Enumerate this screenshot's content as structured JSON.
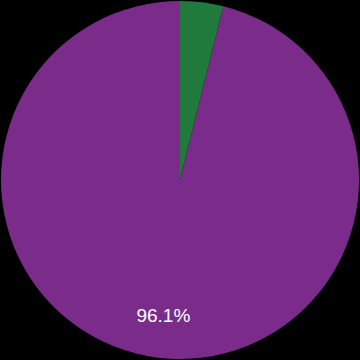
{
  "chart_data": {
    "type": "pie",
    "values": [
      3.9,
      96.1
    ],
    "colors": [
      "#1f7a3b",
      "#7b2c8b"
    ],
    "value_labels": [
      null,
      "96.1%"
    ],
    "data_labels": true
  }
}
